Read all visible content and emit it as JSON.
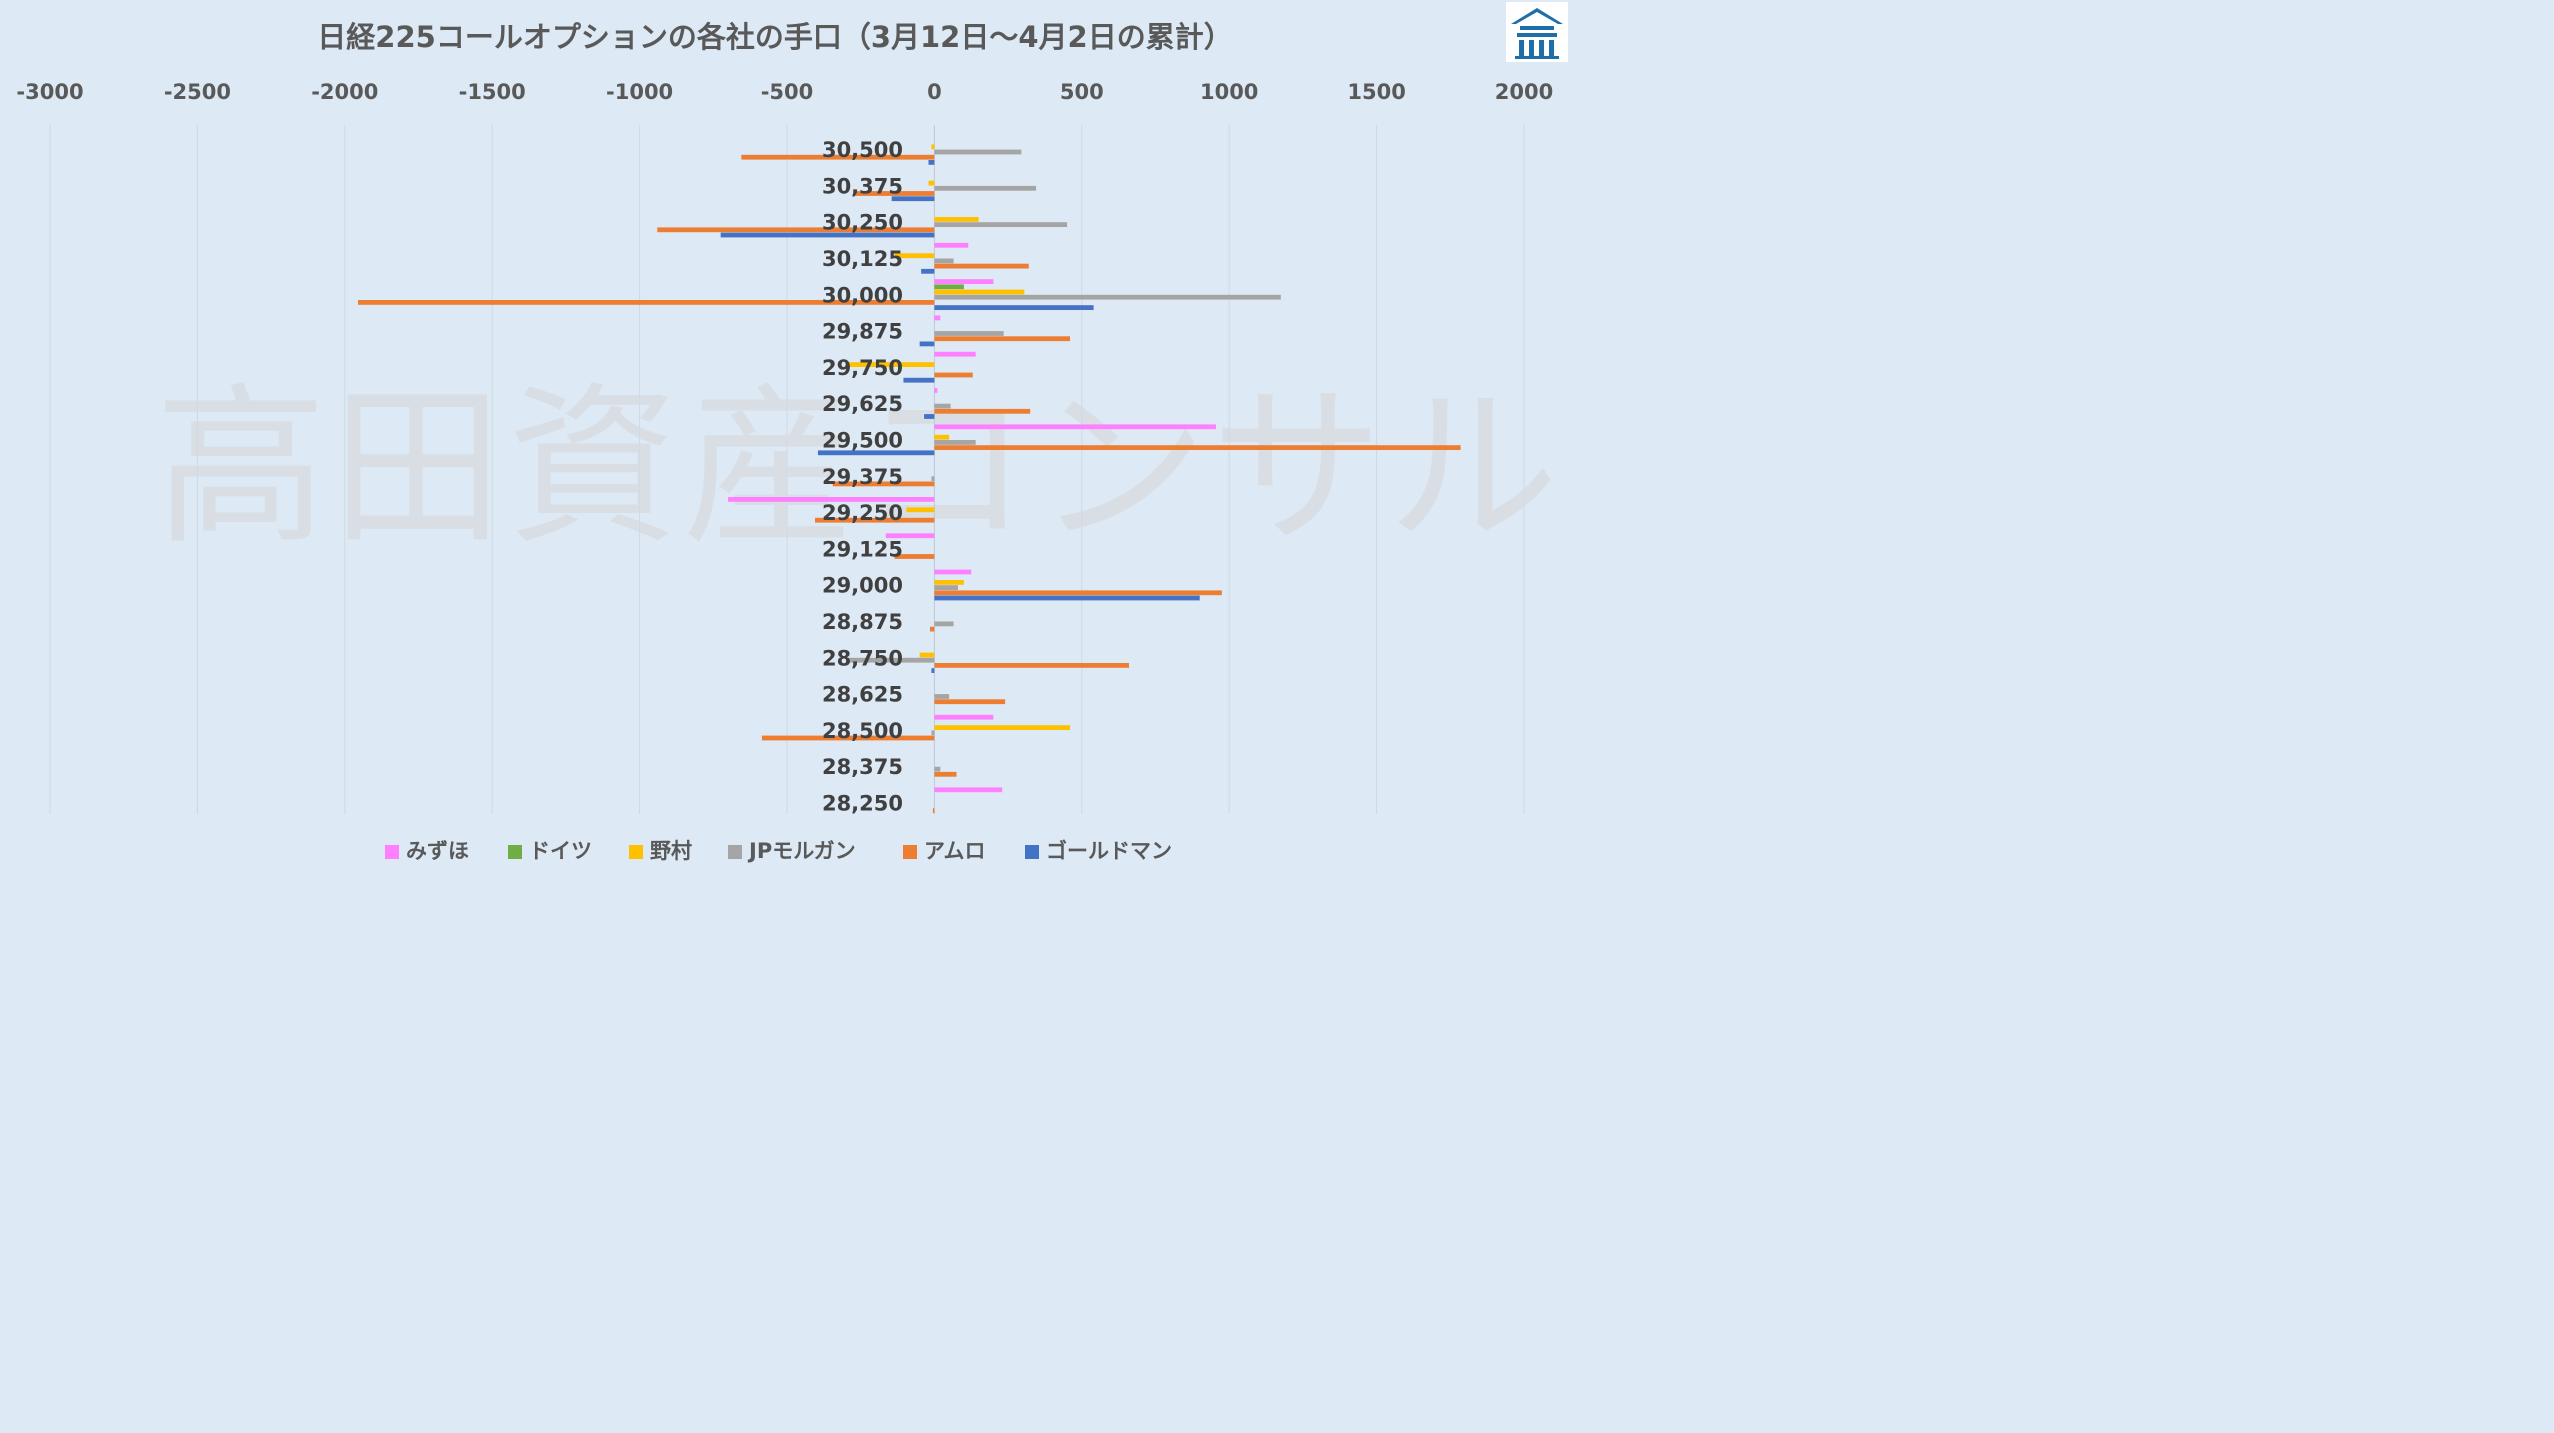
{
  "chart_data": {
    "type": "bar",
    "orientation": "horizontal",
    "title": "日経225コールオプションの各社の手口（3月12日～4月2日の累計）",
    "watermark": "高田資産コンサル",
    "logo": "高田資産コンサル logo",
    "xlim": [
      -3000,
      2000
    ],
    "xticks": [
      "-3000",
      "-2500",
      "-2000",
      "-1500",
      "-1000",
      "-500",
      "0",
      "500",
      "1000",
      "1500",
      "2000"
    ],
    "xtick_values": [
      -3000,
      -2500,
      -2000,
      -1500,
      -1000,
      -500,
      0,
      500,
      1000,
      1500,
      2000
    ],
    "xaxis_position": "top",
    "grid": true,
    "legend_position": "bottom",
    "categories": [
      "30,500",
      "30,375",
      "30,250",
      "30,125",
      "30,000",
      "29,875",
      "29,750",
      "29,625",
      "29,500",
      "29,375",
      "29,250",
      "29,125",
      "29,000",
      "28,875",
      "28,750",
      "28,625",
      "28,500",
      "28,375",
      "28,250"
    ],
    "series": [
      {
        "name": "みずほ",
        "color": "#ff80ff",
        "values": [
          0,
          0,
          0,
          115,
          200,
          20,
          140,
          10,
          955,
          0,
          -700,
          -165,
          125,
          0,
          0,
          0,
          200,
          0,
          230
        ]
      },
      {
        "name": "ドイツ",
        "color": "#70ad47",
        "values": [
          0,
          0,
          0,
          0,
          100,
          0,
          0,
          0,
          0,
          0,
          0,
          0,
          0,
          0,
          0,
          0,
          0,
          0,
          0
        ]
      },
      {
        "name": "野村",
        "color": "#ffc000",
        "values": [
          -10,
          -20,
          150,
          -135,
          305,
          0,
          -290,
          0,
          50,
          0,
          -95,
          0,
          100,
          0,
          -50,
          0,
          460,
          0,
          0
        ]
      },
      {
        "name": "JPモルガン",
        "color": "#a5a5a5",
        "values": [
          295,
          345,
          450,
          65,
          1175,
          235,
          0,
          55,
          140,
          -10,
          0,
          0,
          80,
          65,
          -300,
          50,
          -10,
          20,
          0
        ]
      },
      {
        "name": "アムロ",
        "color": "#ed7d31",
        "values": [
          -655,
          -270,
          -940,
          320,
          -1955,
          460,
          130,
          325,
          1785,
          -345,
          -405,
          -135,
          975,
          -15,
          660,
          240,
          -585,
          75,
          -5
        ]
      },
      {
        "name": "ゴールドマン",
        "color": "#4472c4",
        "values": [
          -20,
          -145,
          -725,
          -45,
          540,
          -50,
          -105,
          -35,
          -395,
          0,
          0,
          0,
          900,
          0,
          -10,
          0,
          0,
          0,
          0
        ]
      }
    ]
  }
}
